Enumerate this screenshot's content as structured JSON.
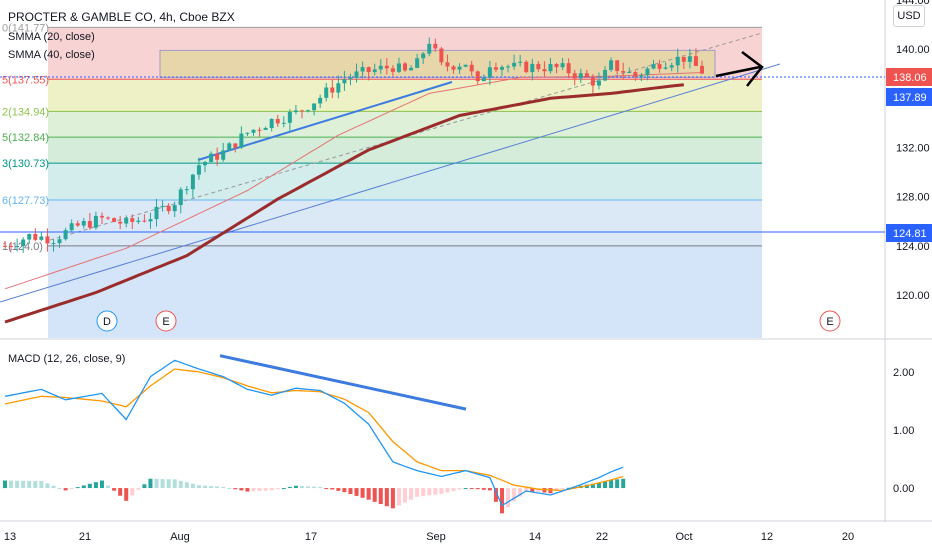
{
  "header": {
    "title": "PROCTER & GAMBLE CO, 4h, Cboe BZX",
    "indicators": [
      "SMMA (20, close)",
      "SMMA (40, close)"
    ],
    "currency_button": "USD"
  },
  "macd": {
    "label": "MACD (12, 26, close, 9)"
  },
  "colors": {
    "candle_up": "#26a69a",
    "candle_down": "#ef5350",
    "smma20": "#e57373",
    "smma40": "#9b2c2c",
    "trendline": "#3d7be0",
    "macd_line": "#2196f3",
    "signal_line": "#ff9800",
    "hist_up": "#26a69a",
    "hist_down": "#ef5350",
    "hist_up_light": "#b2dfdb",
    "hist_down_light": "#ffcdd2"
  },
  "chart_data": {
    "type": "candlestick",
    "price_axis": {
      "ylim": [
        116.5,
        144
      ],
      "ticks": [
        120.0,
        124.0,
        128.0,
        132.0,
        136.0,
        140.0,
        144.0
      ],
      "tick_labels": [
        "120.00",
        "124.00",
        "128.00",
        "132.00",
        "136.00",
        "140.00",
        "144.00"
      ]
    },
    "price_tags": [
      {
        "value": 138.06,
        "label": "138.06",
        "color": "#ef5350"
      },
      {
        "value": 137.89,
        "label": "137.89",
        "color": "#2962ff"
      },
      {
        "value": 124.81,
        "label": "124.81",
        "color": "#2962ff"
      }
    ],
    "fib_levels": [
      {
        "value": 141.77,
        "label": "0(141.77)",
        "fill": "#f8d3d3",
        "color": "#9e9e9e"
      },
      {
        "value": 137.55,
        "label": "5(137.55)",
        "fill": "#eef1c6",
        "color": "#ef5350"
      },
      {
        "value": 134.94,
        "label": "2(134.94)",
        "fill": "#dff0d8",
        "color": "#8bc34a"
      },
      {
        "value": 132.84,
        "label": "5(132.84)",
        "fill": "#d4ecd9",
        "color": "#4caf50"
      },
      {
        "value": 130.73,
        "label": "3(130.73)",
        "fill": "#d3ecec",
        "color": "#009688"
      },
      {
        "value": 127.73,
        "label": "6(127.73)",
        "fill": "#dbe9f7",
        "color": "#64b5f6"
      },
      {
        "value": 124.0,
        "label": "1(124.0)",
        "fill": "#e6e6e6",
        "color": "#787b86"
      }
    ],
    "x_axis": {
      "tick_labels": [
        "13",
        "21",
        "Aug",
        "17",
        "Sep",
        "14",
        "22",
        "Oct",
        "12",
        "20"
      ]
    },
    "events": [
      "D",
      "E",
      "E"
    ],
    "macd_axis": {
      "ylim": [
        -0.55,
        2.55
      ],
      "ticks": [
        0.0,
        1.0,
        2.0
      ],
      "tick_labels": [
        "0.00",
        "1.00",
        "2.00"
      ]
    },
    "anchors": [
      [
        0,
        124.0
      ],
      [
        4,
        124.8
      ],
      [
        8,
        124.6
      ],
      [
        12,
        125.6
      ],
      [
        16,
        126.2
      ],
      [
        20,
        125.8
      ],
      [
        24,
        126.4
      ],
      [
        28,
        127.6
      ],
      [
        32,
        130.6
      ],
      [
        36,
        131.6
      ],
      [
        40,
        133.2
      ],
      [
        44,
        134.2
      ],
      [
        48,
        134.8
      ],
      [
        52,
        136.1
      ],
      [
        56,
        137.6
      ],
      [
        60,
        138.2
      ],
      [
        64,
        138.6
      ],
      [
        66,
        138.1
      ],
      [
        68,
        138.8
      ],
      [
        70,
        140.7
      ],
      [
        72,
        138.6
      ],
      [
        76,
        138.9
      ],
      [
        78,
        137.0
      ],
      [
        80,
        138.9
      ],
      [
        84,
        138.5
      ],
      [
        88,
        138.6
      ],
      [
        92,
        138.4
      ],
      [
        96,
        137.6
      ],
      [
        98,
        137.2
      ],
      [
        100,
        138.7
      ],
      [
        104,
        137.8
      ],
      [
        108,
        138.9
      ],
      [
        112,
        139.3
      ],
      [
        115,
        138.2
      ]
    ],
    "smma20": [
      [
        0,
        120.5
      ],
      [
        20,
        123.8
      ],
      [
        40,
        128.5
      ],
      [
        55,
        133.0
      ],
      [
        70,
        136.4
      ],
      [
        85,
        137.7
      ],
      [
        100,
        137.8
      ],
      [
        115,
        138.1
      ]
    ],
    "smma40": [
      [
        0,
        117.8
      ],
      [
        15,
        120.2
      ],
      [
        30,
        123.2
      ],
      [
        45,
        127.8
      ],
      [
        60,
        131.8
      ],
      [
        75,
        134.6
      ],
      [
        90,
        136.0
      ],
      [
        100,
        136.4
      ],
      [
        110,
        137.0
      ],
      [
        112,
        137.1
      ]
    ],
    "macd_line": [
      [
        0,
        1.58
      ],
      [
        6,
        1.7
      ],
      [
        10,
        1.52
      ],
      [
        16,
        1.63
      ],
      [
        20,
        1.18
      ],
      [
        24,
        1.92
      ],
      [
        28,
        2.2
      ],
      [
        32,
        2.05
      ],
      [
        36,
        1.92
      ],
      [
        40,
        1.7
      ],
      [
        44,
        1.6
      ],
      [
        48,
        1.72
      ],
      [
        52,
        1.68
      ],
      [
        56,
        1.46
      ],
      [
        60,
        1.1
      ],
      [
        64,
        0.45
      ],
      [
        68,
        0.3
      ],
      [
        72,
        0.2
      ],
      [
        76,
        0.3
      ],
      [
        80,
        0.18
      ],
      [
        82,
        -0.3
      ],
      [
        86,
        -0.05
      ],
      [
        90,
        -0.12
      ],
      [
        94,
        0.02
      ],
      [
        98,
        0.18
      ],
      [
        100,
        0.28
      ],
      [
        102,
        0.36
      ]
    ],
    "signal_line": [
      [
        0,
        1.45
      ],
      [
        6,
        1.58
      ],
      [
        10,
        1.56
      ],
      [
        16,
        1.5
      ],
      [
        20,
        1.4
      ],
      [
        24,
        1.76
      ],
      [
        28,
        2.05
      ],
      [
        32,
        2.0
      ],
      [
        36,
        1.9
      ],
      [
        40,
        1.76
      ],
      [
        44,
        1.64
      ],
      [
        48,
        1.68
      ],
      [
        52,
        1.66
      ],
      [
        56,
        1.53
      ],
      [
        60,
        1.3
      ],
      [
        64,
        0.8
      ],
      [
        68,
        0.45
      ],
      [
        72,
        0.3
      ],
      [
        76,
        0.3
      ],
      [
        80,
        0.22
      ],
      [
        84,
        0.05
      ],
      [
        88,
        -0.02
      ],
      [
        92,
        -0.04
      ],
      [
        96,
        0.04
      ],
      [
        100,
        0.14
      ],
      [
        102,
        0.2
      ]
    ],
    "macd_trend": [
      [
        0,
        2.28
      ],
      [
        1,
        1.36
      ]
    ]
  }
}
